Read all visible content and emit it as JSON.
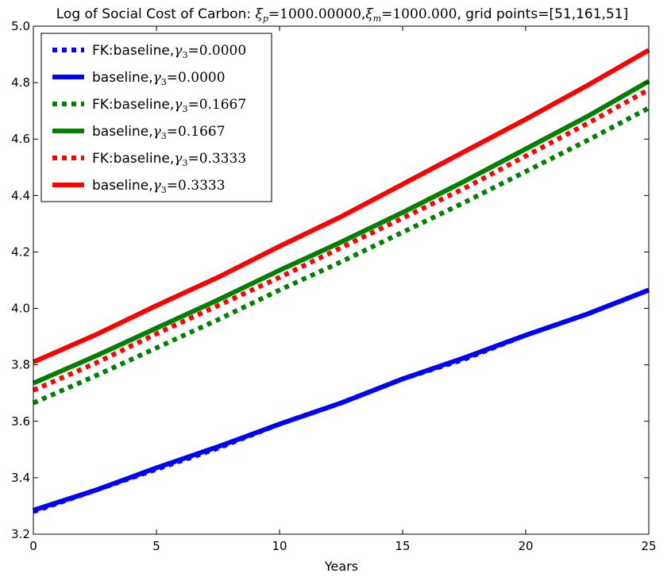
{
  "chart_data": {
    "type": "line",
    "title_parts": [
      {
        "t": "Log of Social Cost of Carbon: ",
        "math": false
      },
      {
        "t": "ξ",
        "math": true
      },
      {
        "t": "p",
        "math": true,
        "sub": true
      },
      {
        "t": "=1000.00000",
        "math": true
      },
      {
        "t": ",",
        "math": false
      },
      {
        "t": "ξ",
        "math": true
      },
      {
        "t": "m",
        "math": true,
        "sub": true
      },
      {
        "t": "=1000.000",
        "math": true
      },
      {
        "t": ", grid points=[51,161,51]",
        "math": false
      }
    ],
    "xlabel": "Years",
    "ylabel": "",
    "xlim": [
      0,
      25
    ],
    "ylim": [
      3.2,
      5.0
    ],
    "xticks": [
      "0",
      "5",
      "10",
      "15",
      "20",
      "25"
    ],
    "yticks": [
      "3.2",
      "3.4",
      "3.6",
      "3.8",
      "4.0",
      "4.2",
      "4.4",
      "4.6",
      "4.8",
      "5.0"
    ],
    "grid": false,
    "legend_position": "upper-left",
    "x": [
      0,
      2.5,
      5,
      7.5,
      10,
      12.5,
      15,
      17.5,
      20,
      22.5,
      25
    ],
    "series": [
      {
        "name_prefix": "FK:baseline,",
        "gamma_value": "0.0000",
        "color": "#0000ff",
        "dashed": true,
        "values": [
          3.28,
          3.355,
          3.43,
          3.505,
          3.59,
          3.665,
          3.75,
          3.82,
          3.905,
          3.98,
          4.065
        ]
      },
      {
        "name_prefix": "baseline,",
        "gamma_value": "0.0000",
        "color": "#0000ff",
        "dashed": false,
        "values": [
          3.285,
          3.355,
          3.435,
          3.51,
          3.59,
          3.665,
          3.75,
          3.825,
          3.905,
          3.98,
          4.065
        ]
      },
      {
        "name_prefix": "FK:baseline,",
        "gamma_value": "0.1667",
        "color": "#008000",
        "dashed": true,
        "values": [
          3.665,
          3.76,
          3.86,
          3.96,
          4.065,
          4.165,
          4.27,
          4.375,
          4.485,
          4.595,
          4.71
        ]
      },
      {
        "name_prefix": "baseline,",
        "gamma_value": "0.1667",
        "color": "#008000",
        "dashed": false,
        "values": [
          3.735,
          3.83,
          3.93,
          4.03,
          4.135,
          4.235,
          4.34,
          4.45,
          4.565,
          4.68,
          4.805
        ]
      },
      {
        "name_prefix": "FK:baseline,",
        "gamma_value": "0.3333",
        "color": "#ff0000",
        "dashed": true,
        "values": [
          3.71,
          3.805,
          3.91,
          4.01,
          4.11,
          4.215,
          4.32,
          4.425,
          4.54,
          4.655,
          4.775
        ]
      },
      {
        "name_prefix": "baseline,",
        "gamma_value": "0.3333",
        "color": "#ff0000",
        "dashed": false,
        "values": [
          3.81,
          3.905,
          4.01,
          4.11,
          4.22,
          4.325,
          4.44,
          4.555,
          4.67,
          4.79,
          4.915
        ]
      }
    ]
  }
}
